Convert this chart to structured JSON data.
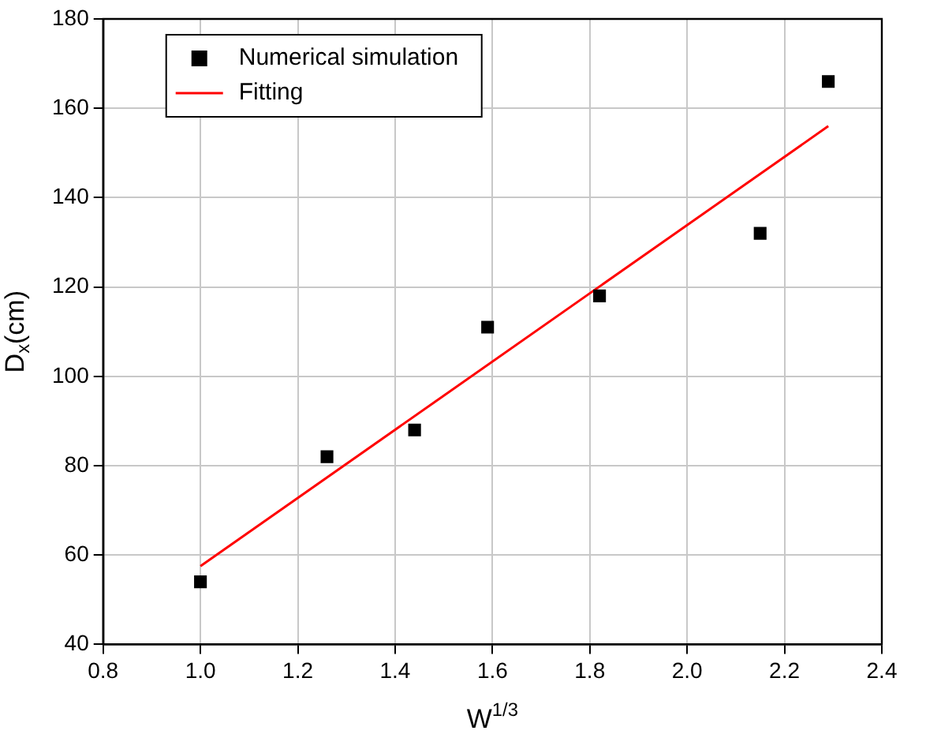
{
  "chart_data": {
    "type": "scatter",
    "xlabel": "W$^{1/3}$",
    "ylabel": "D$_{x}$(cm)",
    "xlim": [
      0.8,
      2.4
    ],
    "ylim": [
      40,
      180
    ],
    "xticks": [
      {
        "value": 0.8,
        "label": "0.8"
      },
      {
        "value": 1,
        "label": "1.0"
      },
      {
        "value": 1.2,
        "label": "1.2"
      },
      {
        "value": 1.4,
        "label": "1.4"
      },
      {
        "value": 1.6,
        "label": "1.6"
      },
      {
        "value": 1.8,
        "label": "1.8"
      },
      {
        "value": 2,
        "label": "2.0"
      },
      {
        "value": 2.2,
        "label": "2.2"
      },
      {
        "value": 2.4,
        "label": "2.4"
      }
    ],
    "yticks": [
      40,
      60,
      80,
      100,
      120,
      140,
      160,
      180
    ],
    "grid": true,
    "legend": "top left",
    "marker": "square",
    "series": [
      {
        "name": "Numerical simulation",
        "color": "#000000",
        "x": [
          1.0,
          1.26,
          1.44,
          1.59,
          1.82,
          2.15,
          2.29
        ],
        "values": [
          54,
          82,
          88,
          111,
          118,
          132,
          166
        ]
      },
      {
        "name": "Fitting",
        "type": "line",
        "color": "#ff0000",
        "marker": "none",
        "line_style": "solid",
        "x": [
          1.0,
          2.29
        ],
        "values": [
          57.5,
          156
        ]
      }
    ]
  }
}
